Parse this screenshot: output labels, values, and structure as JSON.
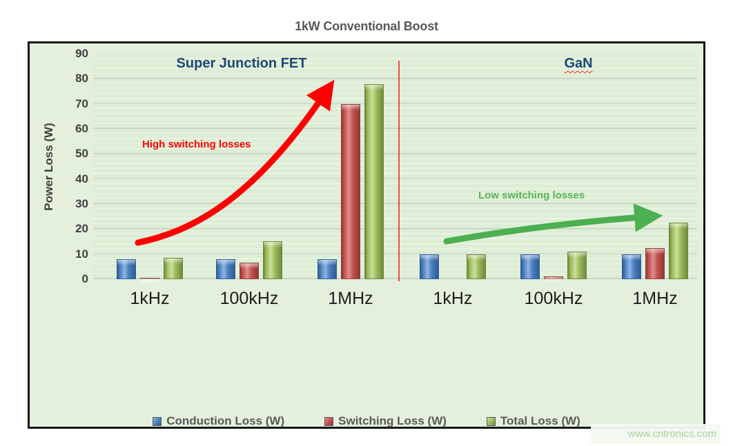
{
  "page": {
    "title": "1kW Conventional Boost",
    "watermark": "www.cntronics.com"
  },
  "chart": {
    "sections": [
      {
        "label": "Super Junction FET",
        "color": "#1c4875"
      },
      {
        "label": "GaN",
        "color": "#1c4875",
        "underline": "red-wavy"
      }
    ],
    "annotations": [
      {
        "text": "High switching losses",
        "color": "#fe0000"
      },
      {
        "text": "Low switching losses",
        "color": "#58b556"
      }
    ],
    "y_axis": {
      "title": "Power Loss (W)",
      "min": 0,
      "max": 90,
      "step": 10
    },
    "divider_color": "#ff0000",
    "arrow_colors": {
      "left": "#fe0000",
      "right": "#4caf50"
    }
  },
  "chart_data": {
    "type": "bar",
    "title": "1kW Conventional Boost",
    "xlabel": "",
    "ylabel": "Power Loss (W)",
    "ylim": [
      0,
      90
    ],
    "y_ticks": [
      0,
      10,
      20,
      30,
      40,
      50,
      60,
      70,
      80,
      90
    ],
    "grid": "horizontal-major-and-minor",
    "legend_position": "bottom",
    "groups": [
      "Super Junction FET",
      "GaN"
    ],
    "categories": [
      "1kHz",
      "100kHz",
      "1MHz",
      "1kHz",
      "100kHz",
      "1MHz"
    ],
    "series": [
      {
        "name": "Conduction Loss (W)",
        "color": "#4a7ebb",
        "values": [
          8,
          8,
          8,
          10,
          10,
          10
        ]
      },
      {
        "name": "Switching Loss (W)",
        "color": "#c1504e",
        "values": [
          0.5,
          6.5,
          70,
          0,
          1,
          12.5
        ]
      },
      {
        "name": "Total Loss (W)",
        "color": "#9aba59",
        "values": [
          8.5,
          15,
          78,
          10,
          11,
          22.5
        ]
      }
    ],
    "annotations": [
      {
        "text": "High switching losses",
        "applies_to": "Super Junction FET"
      },
      {
        "text": "Low switching losses",
        "applies_to": "GaN"
      }
    ]
  }
}
